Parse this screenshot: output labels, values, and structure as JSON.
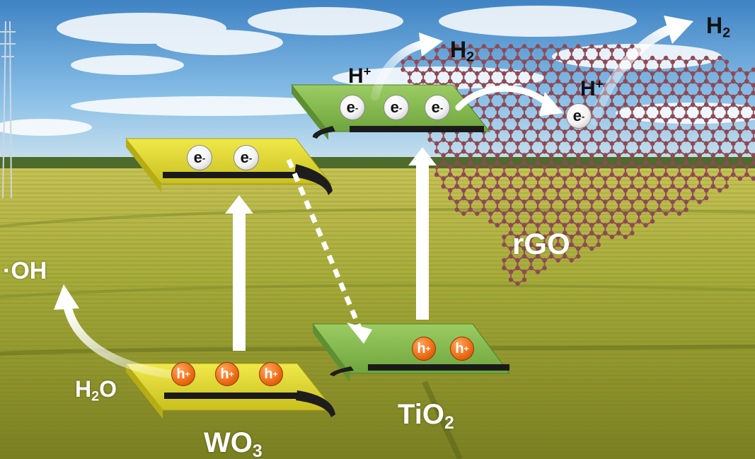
{
  "labels": {
    "wo3_pre": "WO",
    "wo3_sub": "3",
    "tio2_pre": "TiO",
    "tio2_sub": "2",
    "rgo": "rGO",
    "oh": "·OH",
    "h2o_pre": "H",
    "h2o_sub": "2",
    "h2o_post": "O",
    "hplus_1_base": "H",
    "hplus_1_sup": "+",
    "h2_1_base": "H",
    "h2_1_sub": "2",
    "hplus_2_base": "H",
    "hplus_2_sup": "+",
    "h2_2_base": "H",
    "h2_2_sub": "2"
  },
  "particles": {
    "electron_base": "e",
    "electron_sup": "-",
    "hole_base": "h",
    "hole_sup": "+",
    "wo3_cb_electrons": 2,
    "wo3_vb_holes": 3,
    "tio2_cb_electrons": 3,
    "tio2_vb_holes": 2,
    "rgo_electrons": 1
  },
  "colors": {
    "wo3_band": "#d9d12a",
    "tio2_band": "#7fb54a",
    "rgo_lattice": "#8e4a55",
    "hole": "#ee6a14",
    "electron": "#f2f2f2",
    "arrow": "#ffffff",
    "sky_top": "#3f83c4",
    "field": "#a9ac3c"
  },
  "icons": [
    "sun-free-scene",
    "band-plate",
    "transfer-arrow",
    "graphene-lattice",
    "power-tower"
  ]
}
